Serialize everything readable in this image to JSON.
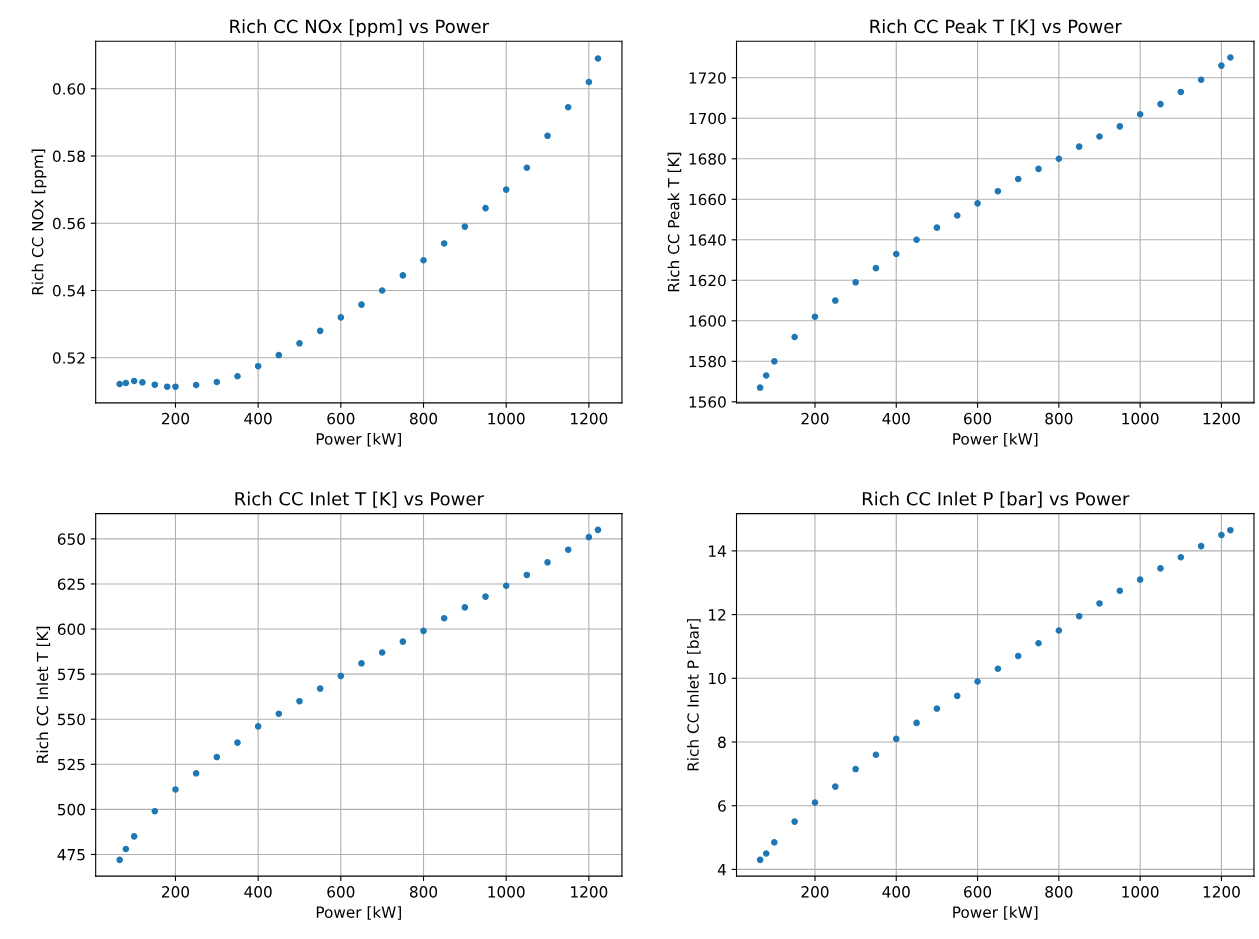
{
  "chart_data": [
    {
      "type": "scatter",
      "title": "Rich CC NOx [ppm] vs Power",
      "xlabel": "Power [kW]",
      "ylabel": "Rich CC NOx [ppm]",
      "marker": "circle",
      "grid": true,
      "x": [
        65,
        80,
        100,
        120,
        150,
        180,
        200,
        250,
        300,
        350,
        400,
        450,
        500,
        550,
        600,
        650,
        700,
        750,
        800,
        850,
        900,
        950,
        1000,
        1050,
        1100,
        1150,
        1200,
        1222
      ],
      "series": [
        {
          "color": "#1f77b4",
          "values": [
            0.5122,
            0.5125,
            0.5131,
            0.5127,
            0.512,
            0.5114,
            0.5114,
            0.5119,
            0.5128,
            0.5145,
            0.5175,
            0.5208,
            0.5243,
            0.528,
            0.532,
            0.5358,
            0.54,
            0.5445,
            0.549,
            0.554,
            0.559,
            0.5645,
            0.57,
            0.5765,
            0.586,
            0.5945,
            0.602,
            0.609
          ]
        }
      ],
      "xlim": [
        7,
        1280
      ],
      "xticks": [
        200,
        400,
        600,
        800,
        1000,
        1200
      ],
      "ylim": [
        0.5066,
        0.6141
      ],
      "yticks": [
        {
          "value": 0.52,
          "label": "0.52"
        },
        {
          "value": 0.54,
          "label": "0.54"
        },
        {
          "value": 0.56,
          "label": "0.56"
        },
        {
          "value": 0.58,
          "label": "0.58"
        },
        {
          "value": 0.6,
          "label": "0.60"
        }
      ]
    },
    {
      "type": "scatter",
      "title": "Rich CC Peak T [K] vs Power",
      "xlabel": "Power [kW]",
      "ylabel": "Rich CC Peak T [K]",
      "marker": "circle",
      "grid": true,
      "x": [
        65,
        80,
        100,
        150,
        200,
        250,
        300,
        350,
        400,
        450,
        500,
        550,
        600,
        650,
        700,
        750,
        800,
        850,
        900,
        950,
        1000,
        1050,
        1100,
        1150,
        1200,
        1222
      ],
      "series": [
        {
          "color": "#1f77b4",
          "values": [
            1567,
            1573,
            1580,
            1592,
            1602,
            1610,
            1619,
            1626,
            1633,
            1640,
            1646,
            1652,
            1658,
            1664,
            1670,
            1675,
            1680,
            1686,
            1691,
            1696,
            1702,
            1707,
            1713,
            1719,
            1726,
            1730
          ]
        }
      ],
      "xlim": [
        7,
        1280
      ],
      "xticks": [
        200,
        400,
        600,
        800,
        1000,
        1200
      ],
      "ylim": [
        1559.5,
        1738
      ],
      "yticks": [
        1560,
        1580,
        1600,
        1620,
        1640,
        1660,
        1680,
        1700,
        1720
      ]
    },
    {
      "type": "scatter",
      "title": "Rich CC Inlet T [K] vs Power",
      "xlabel": "Power [kW]",
      "ylabel": "Rich CC Inlet T [K]",
      "marker": "circle",
      "grid": true,
      "x": [
        65,
        80,
        100,
        150,
        200,
        250,
        300,
        350,
        400,
        450,
        500,
        550,
        600,
        650,
        700,
        750,
        800,
        850,
        900,
        950,
        1000,
        1050,
        1100,
        1150,
        1200,
        1222
      ],
      "series": [
        {
          "color": "#1f77b4",
          "values": [
            472,
            478,
            485,
            499,
            511,
            520,
            529,
            537,
            546,
            553,
            560,
            567,
            574,
            581,
            587,
            593,
            599,
            606,
            612,
            618,
            624,
            630,
            637,
            644,
            651,
            655
          ]
        }
      ],
      "xlim": [
        7,
        1280
      ],
      "xticks": [
        200,
        400,
        600,
        800,
        1000,
        1200
      ],
      "ylim": [
        463,
        664
      ],
      "yticks": [
        475,
        500,
        525,
        550,
        575,
        600,
        625,
        650
      ]
    },
    {
      "type": "scatter",
      "title": "Rich CC Inlet P [bar] vs Power",
      "xlabel": "Power [kW]",
      "ylabel": "Rich CC Inlet P [bar]",
      "marker": "circle",
      "grid": true,
      "x": [
        65,
        80,
        100,
        150,
        200,
        250,
        300,
        350,
        400,
        450,
        500,
        550,
        600,
        650,
        700,
        750,
        800,
        850,
        900,
        950,
        1000,
        1050,
        1100,
        1150,
        1200,
        1222
      ],
      "series": [
        {
          "color": "#1f77b4",
          "values": [
            4.3,
            4.5,
            4.85,
            5.5,
            6.1,
            6.6,
            7.15,
            7.6,
            8.1,
            8.6,
            9.05,
            9.45,
            9.9,
            10.3,
            10.7,
            11.1,
            11.5,
            11.95,
            12.35,
            12.75,
            13.1,
            13.45,
            13.8,
            14.15,
            14.5,
            14.65
          ]
        }
      ],
      "xlim": [
        7,
        1280
      ],
      "xticks": [
        200,
        400,
        600,
        800,
        1000,
        1200
      ],
      "ylim": [
        3.79,
        15.17
      ],
      "yticks": [
        4,
        6,
        8,
        10,
        12,
        14
      ]
    }
  ]
}
